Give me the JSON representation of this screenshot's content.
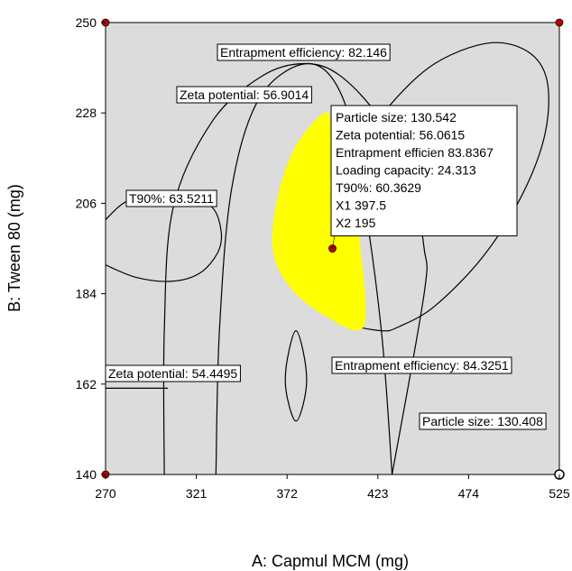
{
  "chart_data": {
    "type": "contour-overlay",
    "xlabel": "A: Capmul MCM (mg)",
    "ylabel": "B: Tween 80 (mg)",
    "xlim": [
      270,
      525
    ],
    "ylim": [
      140,
      250
    ],
    "x_ticks": [
      "270",
      "321",
      "372",
      "423",
      "474",
      "525"
    ],
    "y_ticks": [
      "140",
      "162",
      "184",
      "206",
      "228",
      "250"
    ],
    "grid": false,
    "colors": {
      "plot_bg": "#dcdcdc",
      "design_space": "#ffff00",
      "contour": "#000000",
      "corner_point": "#c00000"
    },
    "contours": [
      {
        "label": "Entrapment efficiency: 82.146",
        "points": [
          [
            332,
            140
          ],
          [
            334,
            175
          ],
          [
            341,
            210
          ],
          [
            357,
            232
          ],
          [
            384,
            240
          ],
          [
            403,
            232
          ],
          [
            414,
            210
          ],
          [
            425,
            175
          ],
          [
            431,
            140
          ]
        ]
      },
      {
        "label": "Zeta potential: 56.9014",
        "points": [
          [
            303,
            140
          ],
          [
            303,
            175
          ],
          [
            308,
            205
          ],
          [
            330,
            226
          ],
          [
            358,
            237
          ],
          [
            382,
            240
          ],
          [
            402,
            237
          ],
          [
            425,
            226
          ],
          [
            442,
            210
          ],
          [
            449,
            195
          ],
          [
            449,
            184
          ],
          [
            431,
            140
          ]
        ]
      },
      {
        "label": "T90%: 63.5211",
        "points": [
          [
            270,
            191
          ],
          [
            287,
            188
          ],
          [
            307,
            187
          ],
          [
            323,
            189
          ],
          [
            333,
            194
          ],
          [
            335,
            199
          ],
          [
            330,
            205
          ],
          [
            315,
            208
          ],
          [
            296,
            209
          ],
          [
            280,
            206
          ],
          [
            270,
            202
          ]
        ]
      },
      {
        "label": "Zeta potential: 54.4495",
        "points": [
          [
            270,
            161
          ],
          [
            287,
            161
          ],
          [
            305,
            161
          ]
        ]
      },
      {
        "label": "Entrapment efficiency: 84.3251",
        "points": [
          [
            377,
            175
          ],
          [
            373,
            170
          ],
          [
            371,
            163
          ],
          [
            373,
            157
          ],
          [
            377,
            153
          ],
          [
            381,
            157
          ],
          [
            383,
            163
          ],
          [
            381,
            170
          ],
          [
            377,
            175
          ]
        ]
      },
      {
        "label": "Particle size: 130.408",
        "points": [
          [
            425,
            175
          ],
          [
            435,
            176
          ],
          [
            455,
            181
          ],
          [
            482,
            193
          ],
          [
            504,
            208
          ],
          [
            517,
            223
          ],
          [
            518,
            236
          ],
          [
            507,
            243
          ],
          [
            485,
            245
          ],
          [
            455,
            240
          ],
          [
            430,
            230
          ],
          [
            410,
            218
          ],
          [
            394,
            205
          ],
          [
            388,
            192
          ],
          [
            392,
            183
          ],
          [
            406,
            177
          ],
          [
            425,
            175
          ]
        ]
      }
    ],
    "design_space": {
      "points": [
        [
          415,
          176
        ],
        [
          392,
          179
        ],
        [
          373,
          186
        ],
        [
          364,
          195
        ],
        [
          367,
          208
        ],
        [
          377,
          220
        ],
        [
          393,
          228
        ],
        [
          397,
          224
        ],
        [
          399,
          209
        ],
        [
          410,
          202
        ],
        [
          413,
          196
        ],
        [
          415,
          176
        ]
      ]
    },
    "corner_points": [
      [
        270,
        250
      ],
      [
        525,
        250
      ],
      [
        270,
        140
      ],
      [
        525,
        140
      ]
    ],
    "hollow_point": [
      525,
      140
    ],
    "selected_point": {
      "x": 397.5,
      "y": 195,
      "info": [
        "Particle size:  130.542",
        "Zeta potential:  56.0615",
        "Entrapment efficien  83.8367",
        "Loading capacity:  24.313",
        "T90%:  60.3629",
        "X1  397.5",
        "X2  195"
      ]
    }
  }
}
